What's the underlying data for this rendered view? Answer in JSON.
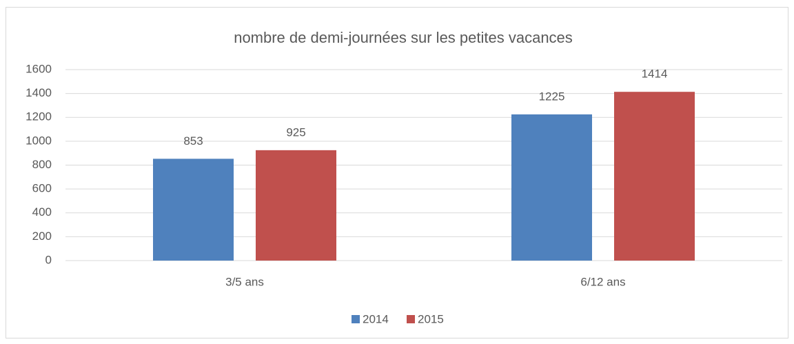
{
  "chart_data": {
    "type": "bar",
    "title": "nombre de demi-journées sur les petites vacances",
    "categories": [
      "3/5 ans",
      "6/12 ans"
    ],
    "series": [
      {
        "name": "2014",
        "color": "#4f81bd",
        "values": [
          853,
          1225
        ]
      },
      {
        "name": "2015",
        "color": "#c0504d",
        "values": [
          925,
          1414
        ]
      }
    ],
    "ylim": [
      0,
      1600
    ],
    "yticks": [
      0,
      200,
      400,
      600,
      800,
      1000,
      1200,
      1400,
      1600
    ],
    "grid": true,
    "legend": "bottom"
  }
}
